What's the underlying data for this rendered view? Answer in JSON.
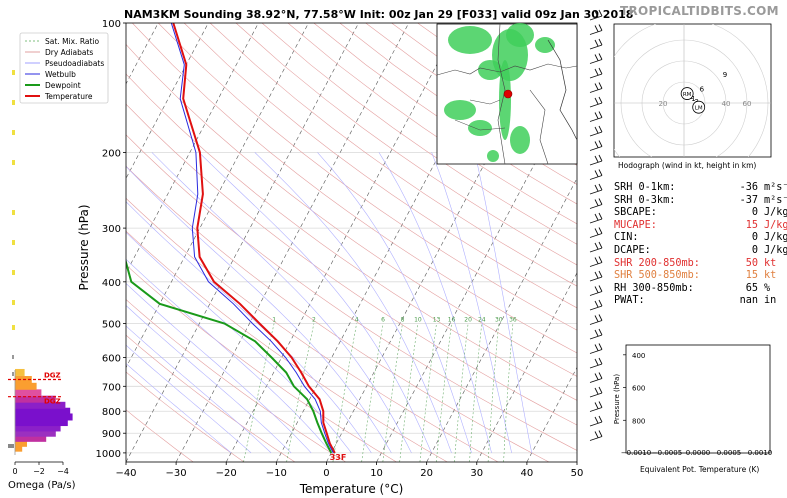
{
  "title": "NAM3KM Sounding 38.92°N, 77.58°W Init: 00z Jan 29 [F033] valid 09z Jan 30 2018",
  "brand": "TROPICALTIDBITS.COM",
  "legend": [
    {
      "label": "Sat. Mix. Ratio",
      "color": "#7fbf7f",
      "style": "dash"
    },
    {
      "label": "Dry Adiabats",
      "color": "#e0a0a0",
      "style": "solid"
    },
    {
      "label": "Pseudoadiabats",
      "color": "#a0a0ff",
      "style": "solid"
    },
    {
      "label": "Wetbulb",
      "color": "#2a2adf",
      "style": "solid"
    },
    {
      "label": "Dewpoint",
      "color": "#1a9a1a",
      "style": "solid"
    },
    {
      "label": "Temperature",
      "color": "#e01010",
      "style": "solid"
    }
  ],
  "chart_data": [
    {
      "type": "line",
      "chart": "skew-t",
      "xlabel": "Temperature (°C)",
      "ylabel": "Pressure (hPa)",
      "xlim": [
        -40,
        50
      ],
      "ylim": [
        1050,
        100
      ],
      "x_ticks": [
        -40,
        -30,
        -20,
        -10,
        0,
        10,
        20,
        30,
        40,
        50
      ],
      "y_ticks": [
        100,
        200,
        300,
        400,
        500,
        600,
        700,
        800,
        900,
        1000
      ],
      "x_tick_labels": [
        "−40",
        "−30",
        "−20",
        "−10",
        "0",
        "10",
        "20",
        "30",
        "40",
        "50"
      ],
      "mixing_ratio_labels": [
        "1",
        "2",
        "4",
        "6",
        "8",
        "10",
        "13",
        "16",
        "20",
        "24",
        "30",
        "36"
      ],
      "surface_label": "33F",
      "series": [
        {
          "name": "Temperature",
          "color": "#e01010",
          "p": [
            1000,
            950,
            900,
            850,
            800,
            750,
            700,
            650,
            600,
            550,
            500,
            450,
            400,
            350,
            300,
            250,
            200,
            150,
            125,
            100
          ],
          "t": [
            0.7,
            -1.3,
            -3.0,
            -4.8,
            -6.0,
            -8.0,
            -11.5,
            -14.5,
            -18.0,
            -22.5,
            -28.0,
            -34.0,
            -41.5,
            -47.0,
            -50.5,
            -53.0,
            -58.0,
            -67.0,
            -70.0,
            -77.0
          ]
        },
        {
          "name": "Wetbulb",
          "color": "#2a2adf",
          "p": [
            1000,
            950,
            900,
            850,
            800,
            750,
            700,
            650,
            600,
            550,
            500,
            450,
            400,
            350,
            300,
            250,
            200,
            150,
            125,
            100
          ],
          "t": [
            0.4,
            -1.6,
            -3.4,
            -5.2,
            -6.6,
            -8.9,
            -12.4,
            -15.5,
            -19.2,
            -23.8,
            -29.4,
            -35.3,
            -42.6,
            -48.0,
            -51.5,
            -54.0,
            -58.8,
            -67.6,
            -70.4,
            -77.4
          ]
        },
        {
          "name": "Dewpoint",
          "color": "#1a9a1a",
          "p": [
            1000,
            950,
            900,
            850,
            800,
            750,
            700,
            650,
            600,
            550,
            500,
            450,
            400,
            350,
            300,
            250,
            200,
            150,
            125,
            100
          ],
          "t": [
            0.0,
            -2.0,
            -4.0,
            -6.0,
            -8.0,
            -10.5,
            -14.5,
            -17.5,
            -22.0,
            -27.0,
            -35.0,
            -50.0,
            -58.0,
            -62.0,
            -66.0,
            -70.0,
            -76.0,
            -85.0,
            -88.0,
            -95.0
          ]
        }
      ]
    },
    {
      "type": "scatter",
      "chart": "hodograph",
      "caption": "Hodograph (wind in kt, height in km)",
      "ring_labels": [
        "20",
        "40",
        "60"
      ],
      "points": [
        {
          "label": "1",
          "u": 9,
          "v": 2
        },
        {
          "label": "2",
          "u": 7,
          "v": 4
        },
        {
          "label": "3",
          "u": 12,
          "v": -1
        },
        {
          "label": "6",
          "u": 17,
          "v": 11
        },
        {
          "label": "9",
          "u": 39,
          "v": 25
        }
      ],
      "markers": [
        {
          "label": "RM",
          "u": 3,
          "v": 9
        },
        {
          "label": "LM",
          "u": 14,
          "v": -4
        }
      ]
    },
    {
      "type": "line",
      "chart": "equivalent-potential-temperature",
      "xlabel": "Equivalent Pot. Temperature (K)",
      "ylabel": "Pressure (hPa)",
      "x_tick_labels": [
        "−0.0010",
        "−0.0005",
        "0.0000",
        "0.0005",
        "0.0010"
      ],
      "y_tick_labels": [
        "400",
        "600",
        "800"
      ],
      "y_ticks": [
        400,
        600,
        800
      ],
      "ylim": [
        1000,
        340
      ],
      "values": []
    },
    {
      "type": "bar",
      "chart": "omega",
      "xlabel": "Omega (Pa/s)",
      "x_tick_labels": [
        "0",
        "−2",
        "−4"
      ],
      "dgz_labels": [
        "DGZ",
        "DGZ"
      ],
      "bars": [
        {
          "p": 975,
          "w": -0.6,
          "color": "#fa9e30"
        },
        {
          "p": 950,
          "w": -1.0,
          "color": "#fa9e30"
        },
        {
          "p": 925,
          "w": -2.6,
          "color": "#c030a0"
        },
        {
          "p": 900,
          "w": -3.4,
          "color": "#9b30c0"
        },
        {
          "p": 875,
          "w": -3.8,
          "color": "#8b20c8"
        },
        {
          "p": 850,
          "w": -4.4,
          "color": "#7a10cc"
        },
        {
          "p": 825,
          "w": -4.8,
          "color": "#7a10cc"
        },
        {
          "p": 800,
          "w": -4.6,
          "color": "#7a10cc"
        },
        {
          "p": 775,
          "w": -4.2,
          "color": "#8b20c8"
        },
        {
          "p": 750,
          "w": -3.4,
          "color": "#c030a0"
        },
        {
          "p": 725,
          "w": -2.2,
          "color": "#e050a0"
        },
        {
          "p": 700,
          "w": -1.8,
          "color": "#fa9e30"
        },
        {
          "p": 675,
          "w": -1.4,
          "color": "#fa9e30"
        },
        {
          "p": 650,
          "w": -0.8,
          "color": "#f5c040"
        }
      ]
    }
  ],
  "indices": [
    {
      "label": "SRH 0-1km:",
      "value": "-36",
      "unit": "m²s⁻²",
      "color": "#000000"
    },
    {
      "label": "SRH 0-3km:",
      "value": "-37",
      "unit": "m²s⁻²",
      "color": "#000000"
    },
    {
      "label": "SBCAPE:",
      "value": "0",
      "unit": "J/kg",
      "color": "#000000"
    },
    {
      "label": "MUCAPE:",
      "value": "15",
      "unit": "J/kg",
      "color": "#e03030"
    },
    {
      "label": "CIN:",
      "value": "0",
      "unit": "J/kg",
      "color": "#000000"
    },
    {
      "label": "DCAPE:",
      "value": "0",
      "unit": "J/kg",
      "color": "#000000"
    },
    {
      "label": "SHR 200-850mb:",
      "value": "50",
      "unit": "kt",
      "color": "#e03030"
    },
    {
      "label": "SHR 500-850mb:",
      "value": "15",
      "unit": "kt",
      "color": "#e08040"
    },
    {
      "label": "RH 300-850mb:",
      "value": "65",
      "unit": "%",
      "color": "#000000"
    },
    {
      "label": "PWAT:",
      "value": "nan",
      "unit": "in",
      "color": "#000000"
    }
  ]
}
